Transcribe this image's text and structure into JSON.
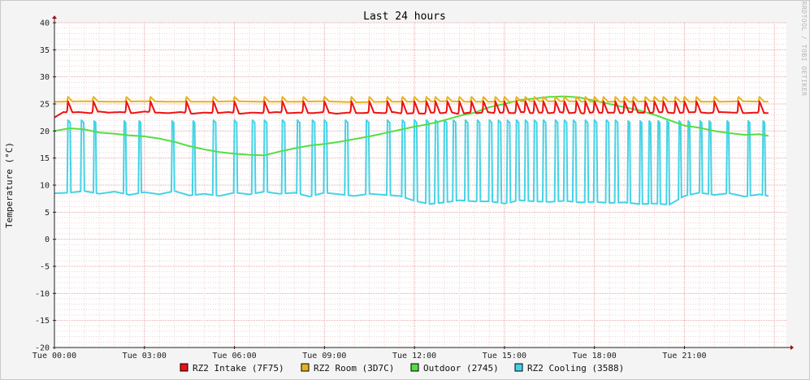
{
  "chart_data": {
    "type": "line",
    "title": "Last 24 hours",
    "ylabel": "Temperature (°C)",
    "watermark": "RRDTOOL / TOBI OETIKER",
    "ylim": [
      -20,
      40
    ],
    "yticks": [
      40,
      35,
      30,
      25,
      20,
      15,
      10,
      5,
      0,
      -5,
      -10,
      -15,
      -20
    ],
    "xlim_hours": [
      0,
      24.4
    ],
    "xticks": [
      {
        "h": 0,
        "label": "Tue 00:00"
      },
      {
        "h": 3,
        "label": "Tue 03:00"
      },
      {
        "h": 6,
        "label": "Tue 06:00"
      },
      {
        "h": 9,
        "label": "Tue 09:00"
      },
      {
        "h": 12,
        "label": "Tue 12:00"
      },
      {
        "h": 15,
        "label": "Tue 15:00"
      },
      {
        "h": 18,
        "label": "Tue 18:00"
      },
      {
        "h": 21,
        "label": "Tue 21:00"
      }
    ],
    "grid": true,
    "legend_position": "bottom",
    "series": [
      {
        "name": "RZ2 Intake (7F75)",
        "color": "#ee1111",
        "x": [
          0,
          0.3,
          0.5,
          0.8,
          1.2,
          1.5,
          1.8,
          2.2,
          2.6,
          3.0,
          3.4,
          3.8,
          4.2,
          4.6,
          5.0,
          5.4,
          5.8,
          6.2,
          6.6,
          7.0,
          7.4,
          7.8,
          8.2,
          8.6,
          9.0,
          9.4,
          9.8,
          10.2,
          10.6,
          11.0,
          11.3,
          11.6,
          12.0,
          12.3,
          12.6,
          12.9,
          13.2,
          13.5,
          13.8,
          14.1,
          14.4,
          14.7,
          15.0,
          15.3,
          15.6,
          15.9,
          16.2,
          16.5,
          16.8,
          17.1,
          17.4,
          17.7,
          18.0,
          18.3,
          18.6,
          18.9,
          19.2,
          19.5,
          19.8,
          20.1,
          20.4,
          20.7,
          21.0,
          21.4,
          21.8,
          22.2,
          22.6,
          23.0,
          23.4,
          23.8
        ],
        "y": [
          22.5,
          23.5,
          23.4,
          23.5,
          23.3,
          23.6,
          23.4,
          23.5,
          23.3,
          23.6,
          23.4,
          23.3,
          23.5,
          23.2,
          23.4,
          23.3,
          23.5,
          23.2,
          23.4,
          23.3,
          23.5,
          23.3,
          23.4,
          23.3,
          23.5,
          23.2,
          23.4,
          23.3,
          23.4,
          23.3,
          23.5,
          23.2,
          23.3,
          23.2,
          23.4,
          23.3,
          23.5,
          23.1,
          23.4,
          23.3,
          23.5,
          23.3,
          23.4,
          23.3,
          23.5,
          23.3,
          23.4,
          23.3,
          23.5,
          23.3,
          23.4,
          23.2,
          23.5,
          23.3,
          23.4,
          23.3,
          23.5,
          23.4,
          23.3,
          23.5,
          23.4,
          23.3,
          23.4,
          23.5,
          23.3,
          23.5,
          23.4,
          23.3,
          23.4,
          23.3
        ],
        "spike_hours": [
          0.45,
          1.3,
          2.4,
          3.2,
          4.4,
          5.3,
          6.0,
          7.0,
          7.6,
          8.3,
          9.0,
          9.9,
          10.5,
          11.1,
          11.6,
          12.0,
          12.4,
          12.7,
          13.1,
          13.5,
          13.9,
          14.3,
          14.7,
          15.0,
          15.4,
          15.7,
          16.0,
          16.3,
          16.7,
          17.0,
          17.4,
          17.7,
          18.0,
          18.3,
          18.7,
          19.0,
          19.3,
          19.7,
          20.0,
          20.3,
          20.7,
          21.0,
          21.4,
          22.0,
          22.8,
          23.5
        ],
        "spike_peak": 25.5
      },
      {
        "name": "RZ2 Room (3D7C)",
        "color": "#e6b31e",
        "x": [
          0,
          1,
          2,
          3,
          4,
          5,
          6,
          7,
          8,
          9,
          10,
          11,
          12,
          13,
          14,
          15,
          16,
          17,
          18,
          19,
          20,
          21,
          22,
          23,
          23.8
        ],
        "y": [
          25.4,
          25.5,
          25.4,
          25.5,
          25.4,
          25.4,
          25.5,
          25.4,
          25.4,
          25.5,
          25.3,
          25.4,
          25.4,
          25.5,
          25.4,
          25.4,
          25.5,
          25.5,
          25.4,
          25.4,
          25.5,
          25.4,
          25.4,
          25.5,
          25.4
        ],
        "spike_hours": [
          0.45,
          1.3,
          2.4,
          3.2,
          4.4,
          5.3,
          6.0,
          7.0,
          7.6,
          8.3,
          9.0,
          9.9,
          10.5,
          11.1,
          11.6,
          12.0,
          12.4,
          12.7,
          13.1,
          13.5,
          13.9,
          14.3,
          14.7,
          15.0,
          15.4,
          15.7,
          16.0,
          16.3,
          16.7,
          17.0,
          17.4,
          17.7,
          18.0,
          18.3,
          18.7,
          19.0,
          19.3,
          19.7,
          20.0,
          20.3,
          20.7,
          21.0,
          21.4,
          22.0,
          22.8,
          23.5
        ],
        "spike_peak": 26.3
      },
      {
        "name": "Outdoor (2745)",
        "color": "#55dd44",
        "x": [
          0,
          0.5,
          1,
          1.5,
          2,
          2.5,
          3,
          3.5,
          4,
          4.5,
          5,
          5.5,
          6,
          6.5,
          7,
          7.5,
          8,
          8.5,
          9,
          9.5,
          10,
          10.5,
          11,
          11.5,
          12,
          12.5,
          13,
          13.5,
          14,
          14.5,
          15,
          15.5,
          16,
          16.5,
          17,
          17.5,
          18,
          18.5,
          19,
          19.5,
          20,
          20.5,
          21,
          21.5,
          22,
          22.5,
          23,
          23.5,
          23.8
        ],
        "y": [
          20.0,
          20.5,
          20.3,
          19.7,
          19.5,
          19.2,
          19.0,
          18.6,
          18.0,
          17.2,
          16.6,
          16.1,
          15.8,
          15.6,
          15.5,
          16.2,
          16.8,
          17.3,
          17.6,
          18.0,
          18.5,
          19.0,
          19.6,
          20.2,
          20.8,
          21.3,
          22.0,
          22.8,
          23.4,
          24.4,
          25.0,
          25.7,
          26.0,
          26.3,
          26.4,
          26.2,
          25.6,
          25.0,
          24.4,
          23.8,
          23.0,
          22.0,
          21.0,
          20.6,
          20.0,
          19.6,
          19.3,
          19.4,
          19.1
        ]
      },
      {
        "name": "RZ2 Cooling (3588)",
        "color": "#44d3e6",
        "x": [
          0,
          0.5,
          1,
          1.5,
          2,
          2.5,
          3,
          3.5,
          4,
          4.5,
          5,
          5.5,
          6,
          6.5,
          7,
          7.5,
          8,
          8.5,
          9,
          9.5,
          10,
          10.5,
          11,
          11.5,
          12,
          12.5,
          13,
          13.5,
          14,
          14.5,
          15,
          15.5,
          16,
          16.5,
          17,
          17.5,
          18,
          18.5,
          19,
          19.5,
          20,
          20.5,
          21,
          21.5,
          22,
          22.5,
          23,
          23.5,
          23.8
        ],
        "y": [
          8.5,
          8.6,
          8.9,
          8.4,
          8.8,
          8.2,
          8.7,
          8.3,
          8.9,
          8.1,
          8.4,
          8.0,
          8.6,
          8.3,
          8.8,
          8.4,
          8.6,
          7.9,
          8.6,
          8.3,
          8.0,
          8.4,
          8.2,
          8.0,
          7.1,
          6.5,
          6.8,
          7.2,
          7.0,
          7.0,
          6.6,
          7.2,
          7.0,
          6.9,
          7.1,
          6.8,
          6.9,
          6.7,
          6.8,
          6.5,
          6.6,
          6.4,
          8.0,
          8.6,
          8.2,
          8.5,
          7.9,
          8.3,
          8.0
        ],
        "spike_hours": [
          0.45,
          0.9,
          1.3,
          2.3,
          2.8,
          3.9,
          4.6,
          5.3,
          6.0,
          6.6,
          7.0,
          7.6,
          8.1,
          8.6,
          9.0,
          9.7,
          10.4,
          11.1,
          11.6,
          12.0,
          12.4,
          12.7,
          13.0,
          13.3,
          13.7,
          14.1,
          14.5,
          14.8,
          15.1,
          15.4,
          15.7,
          16.0,
          16.3,
          16.7,
          17.0,
          17.3,
          17.7,
          18.0,
          18.4,
          18.7,
          19.1,
          19.5,
          19.8,
          20.1,
          20.4,
          20.8,
          21.1,
          21.5,
          21.8,
          22.4,
          23.1,
          23.6
        ],
        "spike_peak": 22.0
      }
    ]
  }
}
